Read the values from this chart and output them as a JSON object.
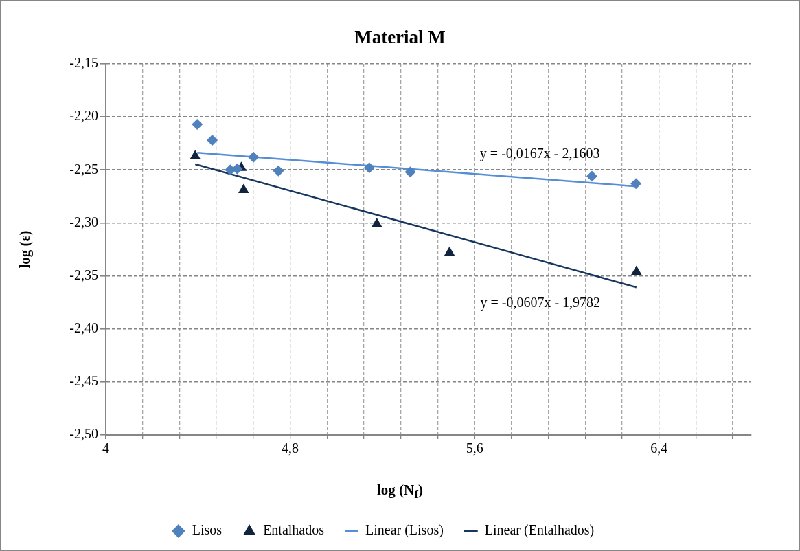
{
  "chart_data": {
    "type": "scatter",
    "title": "Material M",
    "xlabel": "log (N$_{f}$)",
    "ylabel": "log (ε)",
    "xlim": [
      4,
      6.8
    ],
    "xticks": [
      4,
      {
        "value": 4.16,
        "label": null
      },
      {
        "value": 4.32,
        "label": null
      },
      {
        "value": 4.48,
        "label": null
      },
      {
        "value": 4.64,
        "label": null
      },
      {
        "value": 4.8,
        "label": "4,8"
      },
      {
        "value": 4.96,
        "label": null
      },
      {
        "value": 5.12,
        "label": null
      },
      {
        "value": 5.28,
        "label": null
      },
      {
        "value": 5.44,
        "label": null
      },
      {
        "value": 5.6,
        "label": "5,6"
      },
      {
        "value": 5.76,
        "label": null
      },
      {
        "value": 5.92,
        "label": null
      },
      {
        "value": 6.08,
        "label": null
      },
      {
        "value": 6.24,
        "label": null
      },
      {
        "value": 6.4,
        "label": "6,4"
      },
      {
        "value": 6.56,
        "label": null
      },
      {
        "value": 6.72,
        "label": null
      }
    ],
    "ylim": [
      -2.5,
      -2.15
    ],
    "yticks": [
      {
        "value": -2.5,
        "label": "-2,50"
      },
      {
        "value": -2.45,
        "label": "-2,45"
      },
      {
        "value": -2.4,
        "label": "-2,40"
      },
      {
        "value": -2.35,
        "label": "-2,35"
      },
      {
        "value": -2.3,
        "label": "-2,30"
      },
      {
        "value": -2.25,
        "label": "-2,25"
      },
      {
        "value": -2.2,
        "label": "-2,20"
      },
      {
        "value": -2.15,
        "label": "-2,15"
      }
    ],
    "grid": true,
    "legend": "bottom",
    "series": [
      {
        "name": "Lisos",
        "marker": "diamond",
        "color": "#4f81bd",
        "x": [
          4.397,
          4.462,
          4.54,
          4.57,
          4.641,
          4.749,
          5.143,
          5.321,
          6.109,
          6.3
        ],
        "values": [
          -2.207,
          -2.222,
          -2.25,
          -2.249,
          -2.238,
          -2.251,
          -2.248,
          -2.252,
          -2.256,
          -2.263
        ]
      },
      {
        "name": "Entalhados",
        "marker": "triangle",
        "color": "#10243e",
        "x": [
          4.388,
          4.588,
          4.598,
          5.176,
          5.491,
          6.302
        ],
        "values": [
          -2.237,
          -2.248,
          -2.269,
          -2.301,
          -2.328,
          -2.346
        ]
      },
      {
        "name": "Linear (Lisos)",
        "type": "line",
        "marker": "none",
        "line_style": "solid",
        "color": "#558ed5",
        "x": [
          4.397,
          6.3
        ],
        "values": [
          -2.2337,
          -2.2655
        ]
      },
      {
        "name": "Linear (Entalhados)",
        "type": "line",
        "marker": "none",
        "line_style": "solid",
        "color": "#17375e",
        "x": [
          4.388,
          6.302
        ],
        "values": [
          -2.2446,
          -2.3608
        ]
      }
    ],
    "annotations": [
      "y = -0,0167x - 2,1603",
      "y = -0,0607x - 1,9782"
    ]
  }
}
